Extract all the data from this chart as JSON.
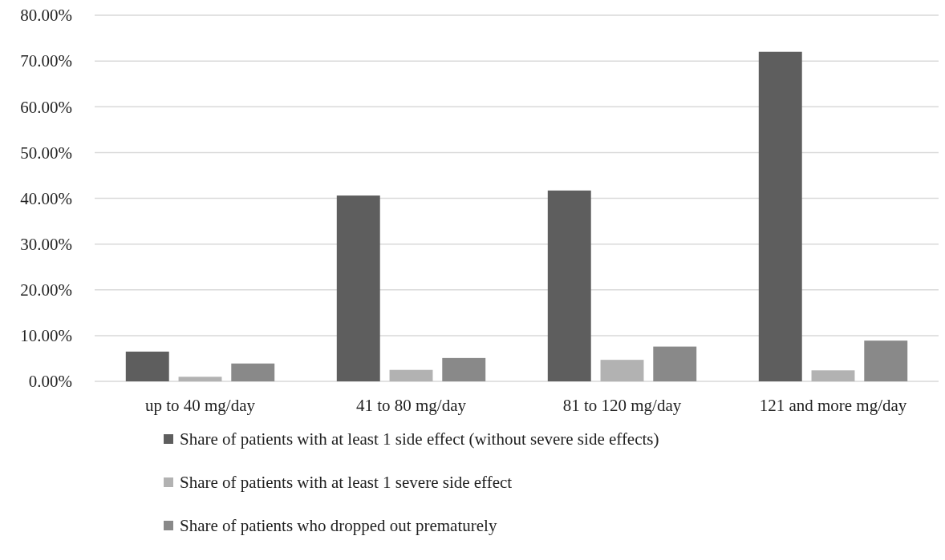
{
  "chart_data": {
    "type": "bar",
    "categories": [
      "up to 40 mg/day",
      "41 to 80 mg/day",
      "81 to 120 mg/day",
      "121 and more mg/day"
    ],
    "series": [
      {
        "name": "Share of patients with at least 1 side effect (without severe side effects)",
        "color": "#5e5e5e",
        "values": [
          6.5,
          40.6,
          41.7,
          72.0
        ]
      },
      {
        "name": "Share of patients with at least 1 severe side effect",
        "color": "#b2b2b2",
        "values": [
          1.0,
          2.5,
          4.7,
          2.4
        ]
      },
      {
        "name": "Share of patients who dropped out prematurely",
        "color": "#898989",
        "values": [
          3.9,
          5.1,
          7.6,
          8.9
        ]
      }
    ],
    "ylim": [
      0,
      80
    ],
    "yticks": [
      {
        "value": 0,
        "label": "0.00%"
      },
      {
        "value": 10,
        "label": "10.00%"
      },
      {
        "value": 20,
        "label": "20.00%"
      },
      {
        "value": 30,
        "label": "30.00%"
      },
      {
        "value": 40,
        "label": "40.00%"
      },
      {
        "value": 50,
        "label": "50.00%"
      },
      {
        "value": 60,
        "label": "60.00%"
      },
      {
        "value": 70,
        "label": "70.00%"
      },
      {
        "value": 80,
        "label": "80.00%"
      }
    ],
    "grid": "y",
    "legend": "bottom"
  }
}
